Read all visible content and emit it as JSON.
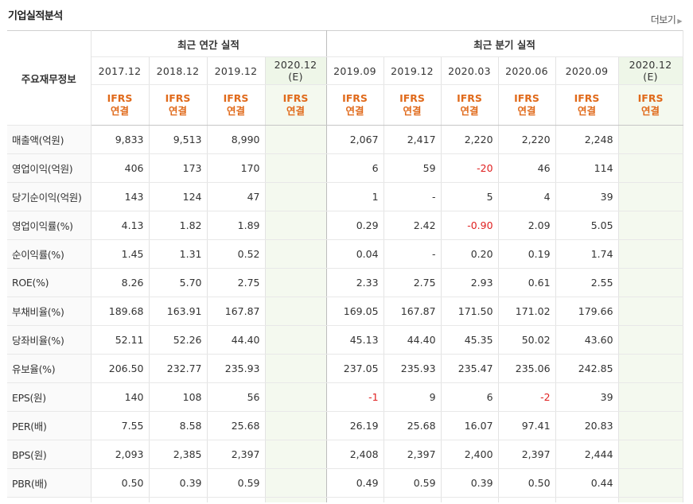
{
  "header": {
    "title": "기업실적분석",
    "more_label": "더보기"
  },
  "table": {
    "row_header_label": "주요재무정보",
    "annual_group_label": "최근 연간 실적",
    "quarter_group_label": "최근 분기 실적",
    "annual_periods": [
      "2017.12",
      "2018.12",
      "2019.12",
      "2020.12"
    ],
    "annual_estimate_suffix": "(E)",
    "quarter_periods": [
      "2019.09",
      "2019.12",
      "2020.03",
      "2020.06",
      "2020.09",
      "2020.12"
    ],
    "quarter_estimate_suffix": "(E)",
    "standard_label": "IFRS",
    "basis_label": "연결",
    "rows": [
      {
        "label": "매출액(억원)",
        "annual": [
          "9,833",
          "9,513",
          "8,990",
          ""
        ],
        "quarter": [
          "2,067",
          "2,417",
          "2,220",
          "2,220",
          "2,248",
          ""
        ]
      },
      {
        "label": "영업이익(억원)",
        "annual": [
          "406",
          "173",
          "170",
          ""
        ],
        "quarter": [
          "6",
          "59",
          "-20",
          "46",
          "114",
          ""
        ]
      },
      {
        "label": "당기순이익(억원)",
        "annual": [
          "143",
          "124",
          "47",
          ""
        ],
        "quarter": [
          "1",
          "-",
          "5",
          "4",
          "39",
          ""
        ]
      },
      {
        "label": "영업이익률(%)",
        "annual": [
          "4.13",
          "1.82",
          "1.89",
          ""
        ],
        "quarter": [
          "0.29",
          "2.42",
          "-0.90",
          "2.09",
          "5.05",
          ""
        ]
      },
      {
        "label": "순이익률(%)",
        "annual": [
          "1.45",
          "1.31",
          "0.52",
          ""
        ],
        "quarter": [
          "0.04",
          "-",
          "0.20",
          "0.19",
          "1.74",
          ""
        ]
      },
      {
        "label": "ROE(%)",
        "annual": [
          "8.26",
          "5.70",
          "2.75",
          ""
        ],
        "quarter": [
          "2.33",
          "2.75",
          "2.93",
          "0.61",
          "2.55",
          ""
        ]
      },
      {
        "label": "부채비율(%)",
        "annual": [
          "189.68",
          "163.91",
          "167.87",
          ""
        ],
        "quarter": [
          "169.05",
          "167.87",
          "171.50",
          "171.02",
          "179.66",
          ""
        ]
      },
      {
        "label": "당좌비율(%)",
        "annual": [
          "52.11",
          "52.26",
          "44.40",
          ""
        ],
        "quarter": [
          "45.13",
          "44.40",
          "45.35",
          "50.02",
          "43.60",
          ""
        ]
      },
      {
        "label": "유보율(%)",
        "annual": [
          "206.50",
          "232.77",
          "235.93",
          ""
        ],
        "quarter": [
          "237.05",
          "235.93",
          "235.47",
          "235.06",
          "242.85",
          ""
        ]
      },
      {
        "label": "EPS(원)",
        "annual": [
          "140",
          "108",
          "56",
          ""
        ],
        "quarter": [
          "-1",
          "9",
          "6",
          "-2",
          "39",
          ""
        ]
      },
      {
        "label": "PER(배)",
        "annual": [
          "7.55",
          "8.58",
          "25.68",
          ""
        ],
        "quarter": [
          "26.19",
          "25.68",
          "16.07",
          "97.41",
          "20.83",
          ""
        ]
      },
      {
        "label": "BPS(원)",
        "annual": [
          "2,093",
          "2,385",
          "2,397",
          ""
        ],
        "quarter": [
          "2,408",
          "2,397",
          "2,400",
          "2,397",
          "2,444",
          ""
        ]
      },
      {
        "label": "PBR(배)",
        "annual": [
          "0.50",
          "0.39",
          "0.59",
          ""
        ],
        "quarter": [
          "0.49",
          "0.59",
          "0.39",
          "0.50",
          "0.44",
          ""
        ]
      }
    ]
  },
  "colors": {
    "ifrs": "#e06a1b",
    "negative": "#e02020",
    "estimate_bg": "#f4f9ef",
    "estimate_text": "#5c8f3b"
  }
}
